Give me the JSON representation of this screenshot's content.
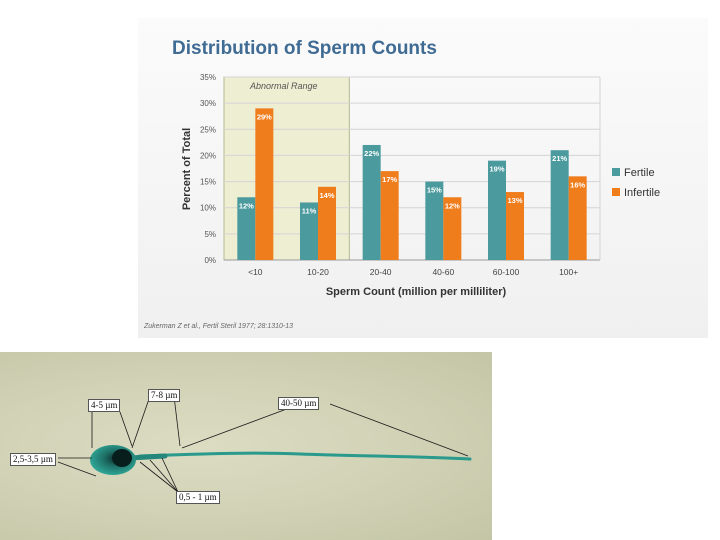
{
  "chart_data": {
    "type": "bar",
    "title": "Distribution of Sperm Counts",
    "xlabel": "Sperm Count (million per milliliter)",
    "ylabel": "Percent of Total",
    "categories": [
      "<10",
      "10-20",
      "20-40",
      "40-60",
      "60-100",
      "100+"
    ],
    "series": [
      {
        "name": "Fertile",
        "values": [
          12,
          11,
          22,
          15,
          19,
          21
        ],
        "labels": [
          "12%",
          "11%",
          "22%",
          "15%",
          "19%",
          "21%"
        ],
        "color": "#4a9a9e"
      },
      {
        "name": "Infertile",
        "values": [
          29,
          14,
          17,
          12,
          13,
          16
        ],
        "labels": [
          "29%",
          "14%",
          "17%",
          "12%",
          "13%",
          "16%"
        ],
        "color": "#f07d1c"
      }
    ],
    "ylim": [
      0,
      35
    ],
    "yticks": [
      "0%",
      "5%",
      "10%",
      "15%",
      "20%",
      "25%",
      "30%",
      "35%"
    ],
    "grid": true,
    "legend": "right",
    "highlight": {
      "label": "Abnormal Range",
      "categories": [
        "<10",
        "10-20"
      ],
      "color": "#eeeed3"
    },
    "citation": "Zukerman Z et al., Fertil Steril 1977; 28:1310-13"
  },
  "micrograph": {
    "labels": [
      "4-5 µm",
      "7-8 µm",
      "40-50 µm",
      "2,5-3,5 µm",
      "0,5 - 1 µm"
    ],
    "stain_color": "#2a9a8c"
  }
}
